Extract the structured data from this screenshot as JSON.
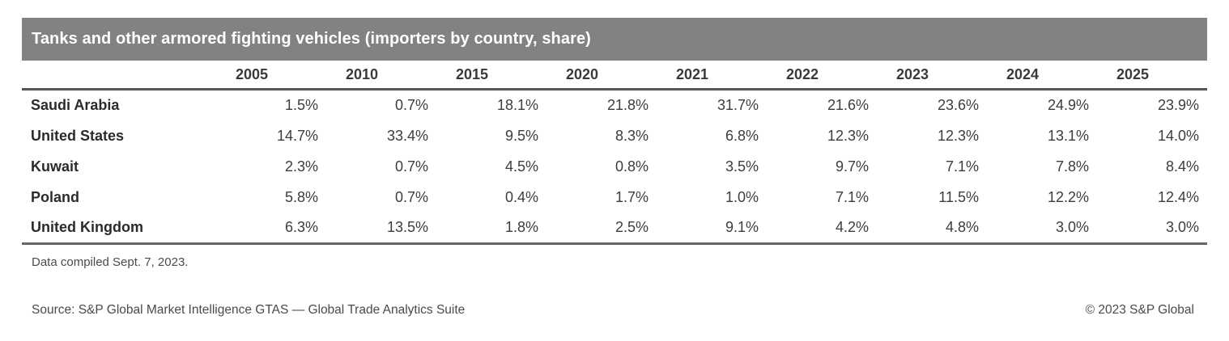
{
  "table": {
    "title": "Tanks and other armored fighting vehicles (importers by country, share)",
    "columns": [
      "2005",
      "2010",
      "2015",
      "2020",
      "2021",
      "2022",
      "2023",
      "2024",
      "2025"
    ],
    "rows": [
      {
        "country": "Saudi Arabia",
        "values": [
          "1.5%",
          "0.7%",
          "18.1%",
          "21.8%",
          "31.7%",
          "21.6%",
          "23.6%",
          "24.9%",
          "23.9%"
        ]
      },
      {
        "country": "United States",
        "values": [
          "14.7%",
          "33.4%",
          "9.5%",
          "8.3%",
          "6.8%",
          "12.3%",
          "12.3%",
          "13.1%",
          "14.0%"
        ]
      },
      {
        "country": "Kuwait",
        "values": [
          "2.3%",
          "0.7%",
          "4.5%",
          "0.8%",
          "3.5%",
          "9.7%",
          "7.1%",
          "7.8%",
          "8.4%"
        ]
      },
      {
        "country": "Poland",
        "values": [
          "5.8%",
          "0.7%",
          "0.4%",
          "1.7%",
          "1.0%",
          "7.1%",
          "11.5%",
          "12.2%",
          "12.4%"
        ]
      },
      {
        "country": "United Kingdom",
        "values": [
          "6.3%",
          "13.5%",
          "1.8%",
          "2.5%",
          "9.1%",
          "4.2%",
          "4.8%",
          "3.0%",
          "3.0%"
        ]
      }
    ]
  },
  "footer": {
    "note": "Data compiled Sept. 7, 2023.",
    "source": "Source: S&P Global Market Intelligence GTAS — Global Trade Analytics Suite",
    "copyright": "© 2023 S&P Global"
  },
  "colors": {
    "title_bar_bg": "#828282",
    "title_text": "#ffffff",
    "header_text": "#3a3a3a",
    "country_text": "#2b2b2b",
    "body_text": "#3d3d3d",
    "footer_text": "#4a4a4a",
    "rule_dark": "#555555",
    "rule_light": "#666666"
  },
  "chart_data": {
    "type": "table",
    "title": "Tanks and other armored fighting vehicles (importers by country, share)",
    "categories": [
      "2005",
      "2010",
      "2015",
      "2020",
      "2021",
      "2022",
      "2023",
      "2024",
      "2025"
    ],
    "series": [
      {
        "name": "Saudi Arabia",
        "values": [
          1.5,
          0.7,
          18.1,
          21.8,
          31.7,
          21.6,
          23.6,
          24.9,
          23.9
        ]
      },
      {
        "name": "United States",
        "values": [
          14.7,
          33.4,
          9.5,
          8.3,
          6.8,
          12.3,
          12.3,
          13.1,
          14.0
        ]
      },
      {
        "name": "Kuwait",
        "values": [
          2.3,
          0.7,
          4.5,
          0.8,
          3.5,
          9.7,
          7.1,
          7.8,
          8.4
        ]
      },
      {
        "name": "Poland",
        "values": [
          5.8,
          0.7,
          0.4,
          1.7,
          1.0,
          7.1,
          11.5,
          12.2,
          12.4
        ]
      },
      {
        "name": "United Kingdom",
        "values": [
          6.3,
          13.5,
          1.8,
          2.5,
          9.1,
          4.2,
          4.8,
          3.0,
          3.0
        ]
      }
    ],
    "unit": "%",
    "note": "Data compiled Sept. 7, 2023.",
    "source": "Source: S&P Global Market Intelligence GTAS — Global Trade Analytics Suite",
    "copyright": "© 2023 S&P Global"
  }
}
